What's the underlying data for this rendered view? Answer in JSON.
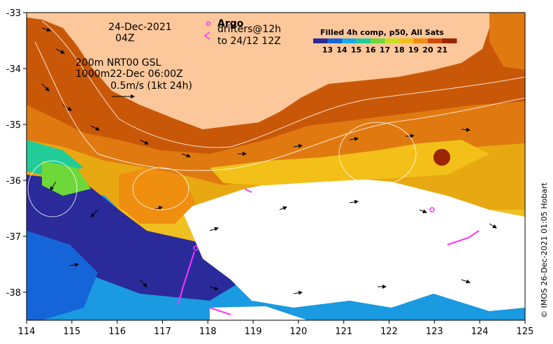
{
  "map": {
    "lon_range": [
      114,
      125
    ],
    "lat_range": [
      -38.5,
      -33
    ],
    "x_ticks": [
      "114",
      "115",
      "116",
      "117",
      "118",
      "119",
      "120",
      "121",
      "122",
      "123",
      "124",
      "125"
    ],
    "y_ticks": [
      "-33",
      "-34",
      "-35",
      "-36",
      "-37",
      "-38"
    ],
    "land_color": "#fcc79a",
    "cloud_color": "#ffffff"
  },
  "annotations": {
    "date": "24-Dec-2021",
    "time": "04Z",
    "argo_label": "Argo",
    "drifters_label": "drifters@12h",
    "drifters_to": "to 24/12 12Z",
    "contour_line1": "200m  NRT00 GSL",
    "contour_line2": "1000m22-Dec 06:00Z",
    "scale_label": "0.5m/s (1kt 24h)"
  },
  "legend": {
    "title": "Filled 4h comp, p50, All Sats",
    "ticks": [
      "13",
      "14",
      "15",
      "16",
      "17",
      "18",
      "19",
      "20",
      "21"
    ],
    "colors": [
      "#2a2a9a",
      "#1565d8",
      "#1aa8e8",
      "#22cc99",
      "#6ed83a",
      "#c8e020",
      "#f2c018",
      "#f08e10",
      "#d04a08",
      "#9a2404"
    ]
  },
  "credit": "© IMOS 26-Dec-2021 01:05 Hobart",
  "colors": {
    "argo": "#ff33ff",
    "drifter": "#ff33ff"
  }
}
